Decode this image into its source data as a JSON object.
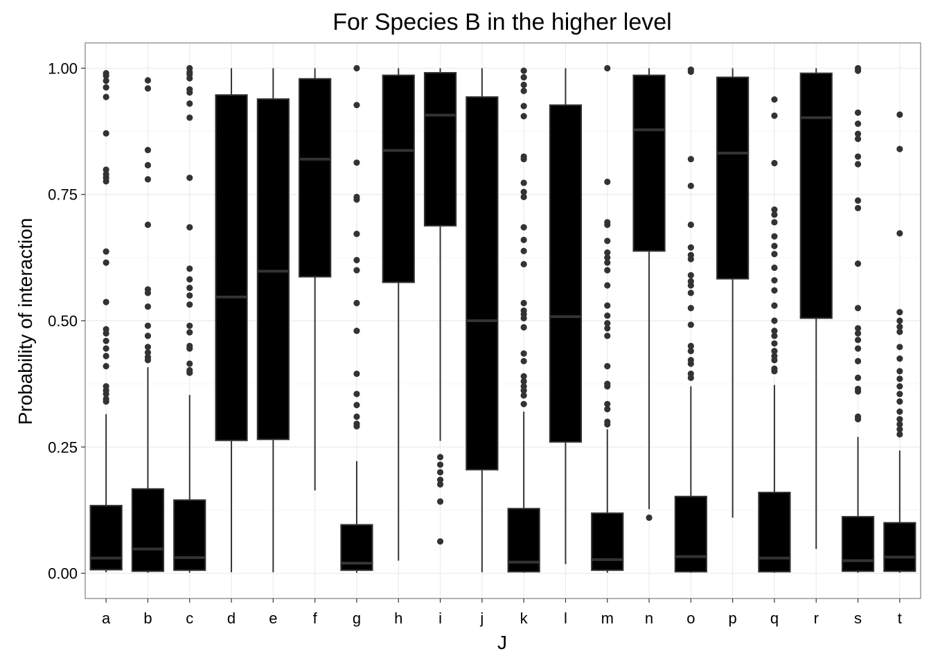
{
  "chart_data": {
    "type": "boxplot",
    "title": "For Species B in the higher level",
    "xlabel": "J",
    "ylabel": "Probability of interaction",
    "ylim": [
      -0.05,
      1.05
    ],
    "yticks": [
      0.0,
      0.25,
      0.5,
      0.75,
      1.0
    ],
    "ytick_labels": [
      "0.00",
      "0.25",
      "0.50",
      "0.75",
      "1.00"
    ],
    "grid": true,
    "theme": "bw",
    "box_fill": "#000000",
    "line_color": "#333333",
    "categories": [
      "a",
      "b",
      "c",
      "d",
      "e",
      "f",
      "g",
      "h",
      "i",
      "j",
      "k",
      "l",
      "m",
      "n",
      "o",
      "p",
      "q",
      "r",
      "s",
      "t"
    ],
    "boxes": [
      {
        "label": "a",
        "lower_whisker": 0.002,
        "q1": 0.007,
        "median": 0.03,
        "q3": 0.134,
        "upper_whisker": 0.315,
        "outliers": [
          0.34,
          0.345,
          0.355,
          0.362,
          0.37,
          0.41,
          0.43,
          0.445,
          0.46,
          0.475,
          0.483,
          0.537,
          0.615,
          0.637,
          0.776,
          0.783,
          0.79,
          0.799,
          0.871,
          0.943,
          0.962,
          0.975,
          0.985,
          0.99
        ]
      },
      {
        "label": "b",
        "lower_whisker": 0.001,
        "q1": 0.004,
        "median": 0.048,
        "q3": 0.167,
        "upper_whisker": 0.408,
        "outliers": [
          0.422,
          0.428,
          0.437,
          0.448,
          0.47,
          0.49,
          0.528,
          0.555,
          0.562,
          0.69,
          0.78,
          0.808,
          0.838,
          0.96,
          0.976
        ]
      },
      {
        "label": "c",
        "lower_whisker": 0.001,
        "q1": 0.006,
        "median": 0.031,
        "q3": 0.145,
        "upper_whisker": 0.353,
        "outliers": [
          0.397,
          0.402,
          0.415,
          0.445,
          0.45,
          0.477,
          0.49,
          0.532,
          0.55,
          0.565,
          0.582,
          0.603,
          0.685,
          0.783,
          0.902,
          0.93,
          0.952,
          0.958,
          0.98,
          0.988,
          0.992,
          1.0
        ]
      },
      {
        "label": "d",
        "lower_whisker": 0.002,
        "q1": 0.263,
        "median": 0.547,
        "q3": 0.947,
        "upper_whisker": 1.0,
        "outliers": []
      },
      {
        "label": "e",
        "lower_whisker": 0.002,
        "q1": 0.265,
        "median": 0.598,
        "q3": 0.939,
        "upper_whisker": 1.0,
        "outliers": []
      },
      {
        "label": "f",
        "lower_whisker": 0.164,
        "q1": 0.587,
        "median": 0.82,
        "q3": 0.979,
        "upper_whisker": 1.0,
        "outliers": []
      },
      {
        "label": "g",
        "lower_whisker": 0.001,
        "q1": 0.006,
        "median": 0.02,
        "q3": 0.096,
        "upper_whisker": 0.222,
        "outliers": [
          0.291,
          0.296,
          0.31,
          0.333,
          0.355,
          0.395,
          0.48,
          0.535,
          0.6,
          0.62,
          0.672,
          0.74,
          0.745,
          0.813,
          0.927,
          1.0
        ]
      },
      {
        "label": "h",
        "lower_whisker": 0.025,
        "q1": 0.576,
        "median": 0.837,
        "q3": 0.986,
        "upper_whisker": 1.0,
        "outliers": []
      },
      {
        "label": "i",
        "lower_whisker": 0.262,
        "q1": 0.688,
        "median": 0.907,
        "q3": 0.991,
        "upper_whisker": 1.0,
        "outliers": [
          0.063,
          0.142,
          0.176,
          0.185,
          0.2,
          0.215,
          0.23
        ]
      },
      {
        "label": "j",
        "lower_whisker": 0.002,
        "q1": 0.205,
        "median": 0.5,
        "q3": 0.943,
        "upper_whisker": 1.0,
        "outliers": []
      },
      {
        "label": "k",
        "lower_whisker": 0.001,
        "q1": 0.003,
        "median": 0.022,
        "q3": 0.128,
        "upper_whisker": 0.32,
        "outliers": [
          0.335,
          0.352,
          0.362,
          0.37,
          0.38,
          0.39,
          0.42,
          0.435,
          0.487,
          0.505,
          0.513,
          0.52,
          0.535,
          0.612,
          0.638,
          0.66,
          0.685,
          0.745,
          0.755,
          0.773,
          0.82,
          0.825,
          0.905,
          0.925,
          0.955,
          0.967,
          0.982,
          0.995
        ]
      },
      {
        "label": "l",
        "lower_whisker": 0.018,
        "q1": 0.26,
        "median": 0.508,
        "q3": 0.927,
        "upper_whisker": 1.0,
        "outliers": []
      },
      {
        "label": "m",
        "lower_whisker": 0.001,
        "q1": 0.006,
        "median": 0.027,
        "q3": 0.119,
        "upper_whisker": 0.285,
        "outliers": [
          0.295,
          0.3,
          0.325,
          0.335,
          0.37,
          0.375,
          0.41,
          0.47,
          0.485,
          0.495,
          0.51,
          0.53,
          0.57,
          0.6,
          0.615,
          0.625,
          0.635,
          0.658,
          0.69,
          0.695,
          0.775,
          1.0
        ]
      },
      {
        "label": "n",
        "lower_whisker": 0.127,
        "q1": 0.638,
        "median": 0.878,
        "q3": 0.986,
        "upper_whisker": 1.0,
        "outliers": [
          0.11
        ]
      },
      {
        "label": "o",
        "lower_whisker": 0.001,
        "q1": 0.003,
        "median": 0.033,
        "q3": 0.152,
        "upper_whisker": 0.37,
        "outliers": [
          0.387,
          0.395,
          0.415,
          0.422,
          0.44,
          0.45,
          0.492,
          0.525,
          0.555,
          0.57,
          0.578,
          0.59,
          0.622,
          0.63,
          0.645,
          0.69,
          0.767,
          0.82,
          0.993,
          0.997
        ]
      },
      {
        "label": "p",
        "lower_whisker": 0.11,
        "q1": 0.583,
        "median": 0.832,
        "q3": 0.982,
        "upper_whisker": 1.0,
        "outliers": []
      },
      {
        "label": "q",
        "lower_whisker": 0.001,
        "q1": 0.003,
        "median": 0.03,
        "q3": 0.16,
        "upper_whisker": 0.373,
        "outliers": [
          0.4,
          0.405,
          0.422,
          0.43,
          0.44,
          0.455,
          0.47,
          0.48,
          0.5,
          0.53,
          0.56,
          0.58,
          0.605,
          0.632,
          0.648,
          0.667,
          0.695,
          0.71,
          0.72,
          0.812,
          0.906,
          0.938
        ]
      },
      {
        "label": "r",
        "lower_whisker": 0.048,
        "q1": 0.505,
        "median": 0.902,
        "q3": 0.99,
        "upper_whisker": 1.0,
        "outliers": []
      },
      {
        "label": "s",
        "lower_whisker": 0.001,
        "q1": 0.004,
        "median": 0.025,
        "q3": 0.112,
        "upper_whisker": 0.27,
        "outliers": [
          0.305,
          0.31,
          0.36,
          0.365,
          0.387,
          0.42,
          0.445,
          0.462,
          0.475,
          0.485,
          0.525,
          0.613,
          0.723,
          0.738,
          0.81,
          0.825,
          0.86,
          0.87,
          0.89,
          0.912,
          0.995,
          1.0
        ]
      },
      {
        "label": "t",
        "lower_whisker": 0.001,
        "q1": 0.004,
        "median": 0.032,
        "q3": 0.1,
        "upper_whisker": 0.243,
        "outliers": [
          0.275,
          0.285,
          0.295,
          0.305,
          0.32,
          0.34,
          0.355,
          0.37,
          0.385,
          0.4,
          0.425,
          0.448,
          0.478,
          0.488,
          0.5,
          0.517,
          0.673,
          0.84,
          0.908
        ]
      }
    ]
  }
}
